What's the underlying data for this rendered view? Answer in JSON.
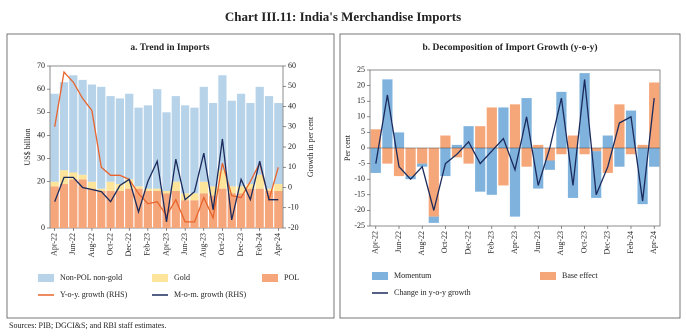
{
  "title": "Chart III.11: India's Merchandise Imports",
  "source": "Sources: PIB; DGCI&S; and RBI staff estimates.",
  "chart_data": [
    {
      "type": "bar",
      "stacked": true,
      "title": "a. Trend in Imports",
      "ylabel": "US$ billion",
      "y2label": "Growth in per cent",
      "categories": [
        "Apr-22",
        null,
        "Jun-22",
        null,
        "Aug-22",
        null,
        "Oct-22",
        null,
        "Dec-22",
        null,
        "Feb-23",
        null,
        "Apr-23",
        null,
        "Jun-23",
        null,
        "Aug-23",
        null,
        "Oct-23",
        null,
        "Dec-23",
        null,
        "Feb-24",
        null,
        "Apr-24"
      ],
      "ylim": [
        0,
        70
      ],
      "yticks": [
        0,
        20,
        30,
        40,
        50,
        60,
        70
      ],
      "y2lim": [
        -20,
        60
      ],
      "y2ticks": [
        -20,
        -10,
        0,
        10,
        20,
        30,
        40,
        50,
        60
      ],
      "series": [
        {
          "name": "Non-POL non-gold",
          "color": "#b7d3ea",
          "values": [
            38,
            38,
            42,
            41,
            42,
            44,
            37,
            37,
            37,
            34,
            36,
            43,
            34,
            37,
            38,
            37,
            41,
            36,
            41,
            37,
            40,
            35,
            38,
            40,
            35
          ]
        },
        {
          "name": "Gold",
          "color": "#fce49a",
          "values": [
            2,
            6,
            3,
            2,
            3,
            1,
            4,
            3,
            4,
            1,
            1,
            1,
            1,
            4,
            3,
            3,
            5,
            4,
            8,
            3,
            3,
            2,
            6,
            1,
            3
          ]
        },
        {
          "name": "POL",
          "color": "#f5a77b",
          "values": [
            18,
            19,
            21,
            21,
            17,
            16,
            16,
            16,
            17,
            17,
            16,
            16,
            15,
            16,
            12,
            12,
            15,
            14,
            17,
            15,
            15,
            17,
            17,
            16,
            16
          ]
        },
        {
          "name": "Y-o-y. growth (RHS)",
          "color": "#e8642c",
          "kind": "line",
          "axis": "y2",
          "values": [
            30,
            57,
            52,
            44,
            38,
            10,
            6,
            6,
            4,
            -3,
            -8,
            -7,
            -14,
            -6,
            -17,
            -17,
            -5,
            -15,
            12,
            -4,
            -5,
            3,
            12,
            -6,
            10
          ]
        },
        {
          "name": "M-o-m. growth (RHS)",
          "color": "#1b2a5c",
          "kind": "line",
          "axis": "y2",
          "values": [
            -7,
            5,
            5,
            0,
            -1,
            -2,
            -7,
            1,
            4,
            -12,
            3,
            13,
            -17,
            14,
            -6,
            -2,
            17,
            -11,
            24,
            -16,
            4,
            -6,
            13,
            -6,
            -6
          ]
        }
      ]
    },
    {
      "type": "bar",
      "stacked": true,
      "title": "b. Decomposition of Import Growth (y-o-y)",
      "ylabel": "Per cent",
      "categories": [
        "Apr-22",
        null,
        "Jun-22",
        null,
        "Aug-22",
        null,
        "Oct-22",
        null,
        "Dec-22",
        null,
        "Feb-23",
        null,
        "Apr-23",
        null,
        "Jun-23",
        null,
        "Aug-23",
        null,
        "Oct-23",
        null,
        "Dec-23",
        null,
        "Feb-24",
        null,
        "Apr-24"
      ],
      "ylim": [
        -25,
        25
      ],
      "yticks": [
        -25,
        -20,
        -15,
        -10,
        -5,
        0,
        5,
        10,
        15,
        20,
        25
      ],
      "series": [
        {
          "name": "Momentum",
          "color": "#7fb3dd",
          "values": [
            -8,
            22,
            5,
            -1,
            -1,
            -2,
            -9,
            1,
            7,
            -14,
            -15,
            13,
            -22,
            16,
            -13,
            -3,
            18,
            -16,
            24,
            -15,
            4,
            -6,
            12,
            -18,
            -6
          ]
        },
        {
          "name": "Base effect",
          "color": "#f6a77a",
          "values": [
            6,
            -5,
            -9,
            -9,
            -5,
            -22,
            4,
            -3,
            -5,
            7,
            13,
            -12,
            14,
            -6,
            1,
            -4,
            -2,
            4,
            -2,
            -1,
            -8,
            14,
            -2,
            1,
            21
          ]
        },
        {
          "name": "Change in y-o-y growth",
          "color": "#1b2a5c",
          "kind": "line",
          "values": [
            -5,
            17,
            -6,
            -10,
            -6,
            -20,
            -5,
            -2,
            2,
            -5,
            -1,
            3,
            -7,
            10,
            -12,
            0,
            16,
            -12,
            22,
            -15,
            -6,
            8,
            10,
            -17,
            16
          ]
        }
      ]
    }
  ]
}
